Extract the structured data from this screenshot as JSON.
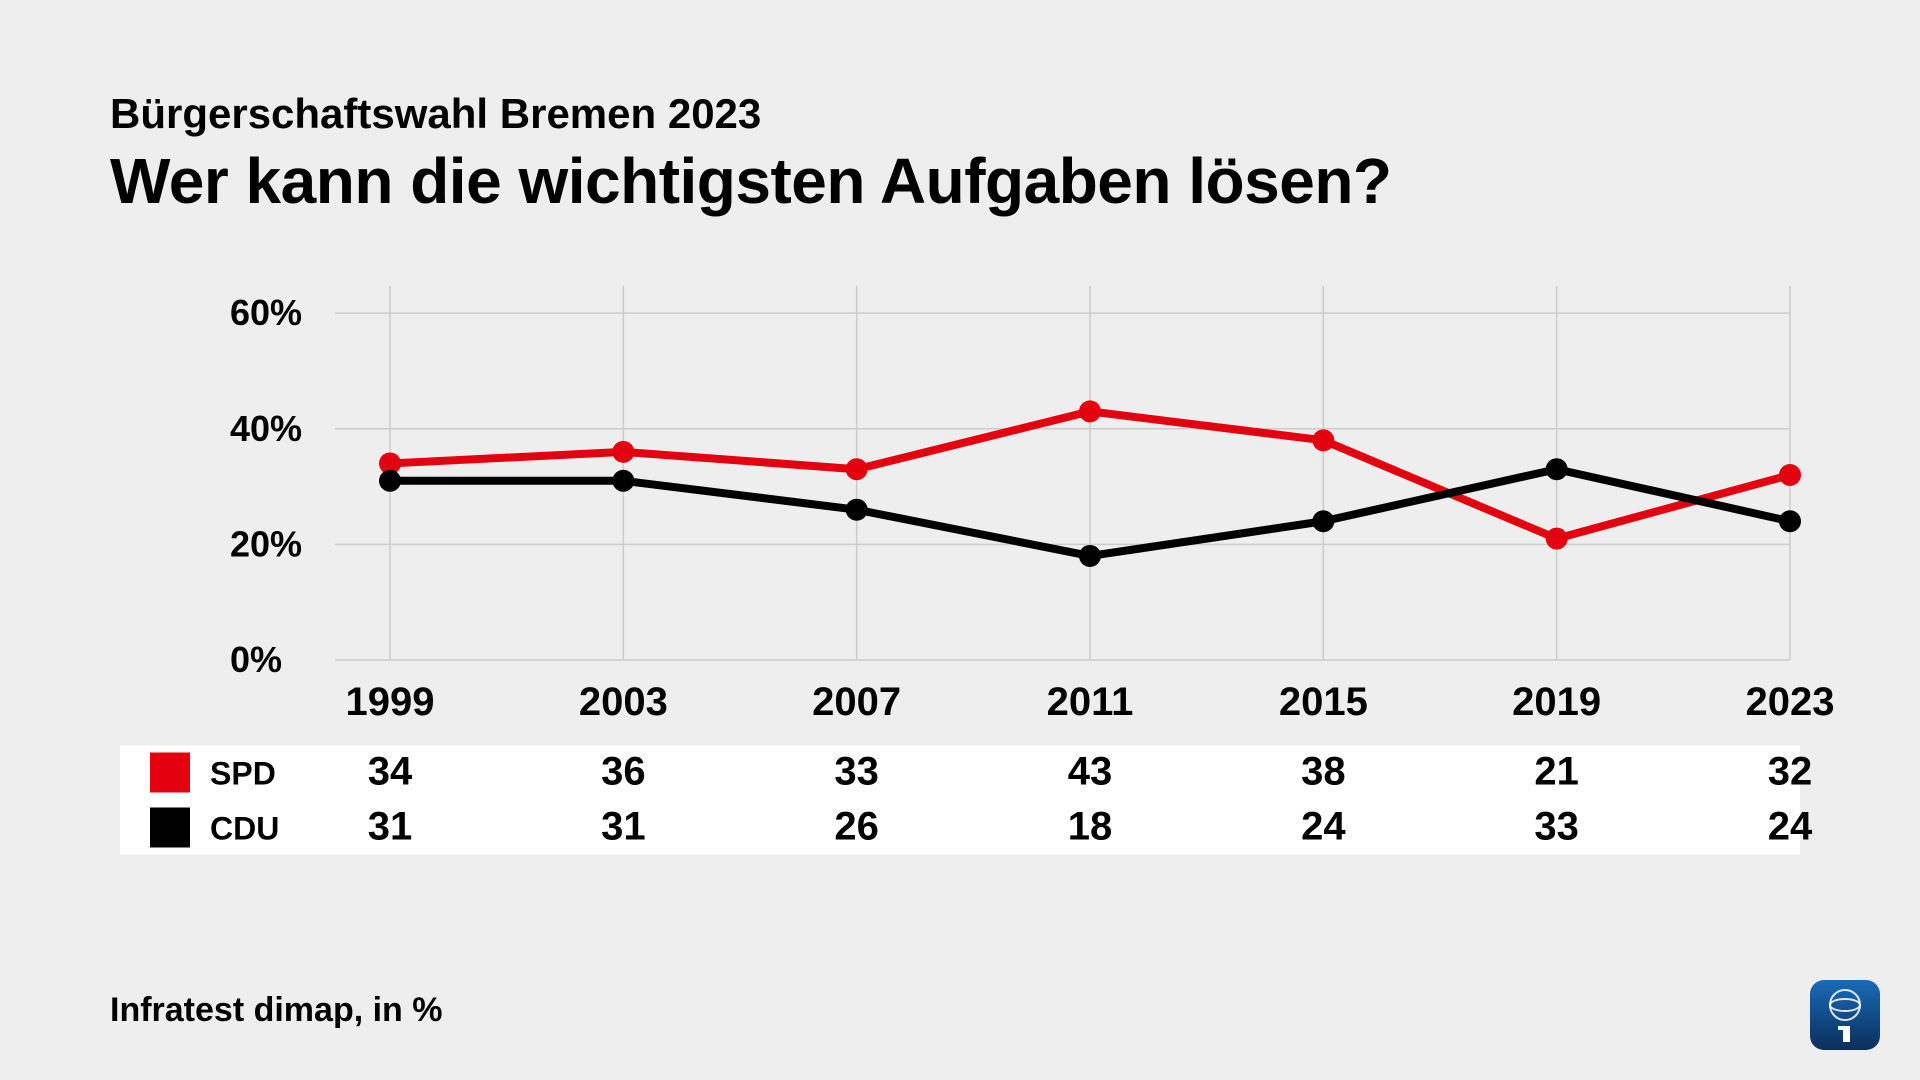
{
  "header": {
    "subtitle": "Bürgerschaftswahl Bremen 2023",
    "title": "Wer kann die wichtigsten Aufgaben lösen?"
  },
  "footer": {
    "source": "Infratest dimap, in %"
  },
  "chart": {
    "type": "line",
    "background_color": "#eeeeee",
    "grid_color": "#cccccc",
    "axis_color": "#cccccc",
    "text_color": "#000000",
    "ylim": [
      0,
      64
    ],
    "yticks": [
      0,
      20,
      40,
      60
    ],
    "ytick_labels": [
      "0%",
      "20%",
      "40%",
      "60%"
    ],
    "categories": [
      "1999",
      "2003",
      "2007",
      "2011",
      "2015",
      "2019",
      "2023"
    ],
    "line_width": 8,
    "marker_radius": 11,
    "series": [
      {
        "name": "SPD",
        "color": "#e3000f",
        "values": [
          34,
          36,
          33,
          43,
          38,
          21,
          32
        ]
      },
      {
        "name": "CDU",
        "color": "#000000",
        "values": [
          31,
          31,
          26,
          18,
          24,
          33,
          24
        ]
      }
    ],
    "table": {
      "row_bg": "#ffffff",
      "swatch_size": 40
    }
  },
  "logo": {
    "name": "das-erste-logo",
    "bg_gradient_top": "#1a6bb8",
    "bg_gradient_bottom": "#0a2f5c",
    "corner_radius": 14,
    "accent": "#ffffff"
  }
}
